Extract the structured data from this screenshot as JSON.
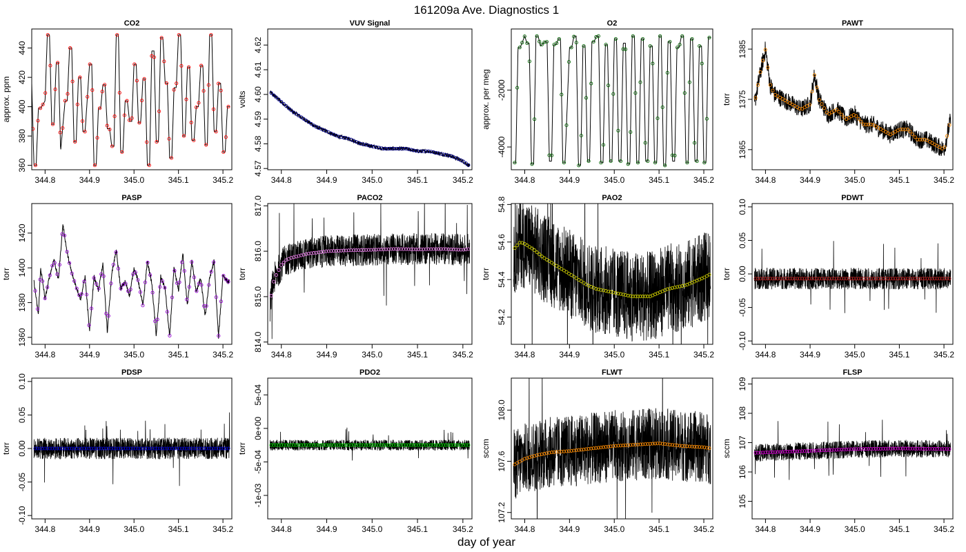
{
  "figure": {
    "title": "161209a   Ave. Diagnostics 1",
    "xlabel": "day of year",
    "x_ticks": [
      "344.8",
      "344.9",
      "345.0",
      "345.1",
      "345.2"
    ]
  },
  "chart_data": [
    {
      "id": "co2",
      "title": "CO2",
      "ylabel": "approx. ppm",
      "type": "line",
      "xlim": [
        344.77,
        345.22
      ],
      "ylim": [
        357,
        453
      ],
      "yticks": [
        360,
        380,
        400,
        420,
        440
      ],
      "ytick_labels": [
        "360",
        "380",
        "400",
        "420",
        "440"
      ],
      "marker_color": "#ff0000",
      "noise": 0,
      "x": [
        344.77,
        344.775,
        344.78,
        344.785,
        344.79,
        344.8,
        344.805,
        344.81,
        344.815,
        344.82,
        344.825,
        344.83,
        344.835,
        344.845,
        344.85,
        344.855,
        344.86,
        344.865,
        344.87,
        344.875,
        344.88,
        344.885,
        344.89,
        344.9,
        344.905,
        344.91,
        344.915,
        344.92,
        344.925,
        344.93,
        344.935,
        344.94,
        344.945,
        344.95,
        344.955,
        344.96,
        344.965,
        344.97,
        344.975,
        344.98,
        344.985,
        344.99,
        344.995,
        345.0,
        345.005,
        345.01,
        345.015,
        345.02,
        345.025,
        345.03,
        345.035,
        345.04,
        345.045,
        345.05,
        345.055,
        345.06,
        345.065,
        345.07,
        345.075,
        345.08,
        345.085,
        345.09,
        345.095,
        345.1,
        345.105,
        345.11,
        345.115,
        345.12,
        345.125,
        345.13,
        345.135,
        345.14,
        345.145,
        345.15,
        345.155,
        345.16,
        345.165,
        345.17,
        345.175,
        345.18,
        345.185,
        345.19,
        345.195,
        345.2,
        345.205,
        345.21,
        345.215
      ],
      "values": [
        416,
        360,
        360,
        399,
        399,
        404,
        449,
        449,
        388,
        388,
        430,
        430,
        370,
        404,
        404,
        440,
        440,
        376,
        376,
        420,
        420,
        383,
        383,
        429,
        429,
        360,
        360,
        399,
        399,
        415,
        415,
        385,
        385,
        373,
        373,
        449,
        449,
        369,
        369,
        404,
        404,
        390,
        390,
        429,
        429,
        389,
        389,
        419,
        419,
        360,
        360,
        438,
        438,
        376,
        376,
        447,
        447,
        416,
        416,
        365,
        365,
        413,
        413,
        449,
        449,
        380,
        380,
        427,
        427,
        377,
        377,
        400,
        400,
        428,
        428,
        374,
        374,
        449,
        449,
        383,
        383,
        416,
        416,
        369,
        369,
        400,
        400
      ]
    },
    {
      "id": "vuv",
      "title": "VUV Signal",
      "ylabel": "volts",
      "type": "line",
      "xlim": [
        344.77,
        345.22
      ],
      "ylim": [
        4.5695,
        4.6265
      ],
      "yticks": [
        4.57,
        4.58,
        4.59,
        4.6,
        4.61,
        4.62
      ],
      "ytick_labels": [
        "4.57",
        "4.58",
        "4.59",
        "4.60",
        "4.61",
        "4.62"
      ],
      "marker_color": "#00008b",
      "noise": 0.0008,
      "x": [
        344.775,
        344.8,
        344.825,
        344.85,
        344.875,
        344.9,
        344.925,
        344.95,
        344.975,
        345.0,
        345.025,
        345.05,
        345.075,
        345.1,
        345.125,
        345.15,
        345.175,
        345.2,
        345.215
      ],
      "values": [
        4.601,
        4.597,
        4.593,
        4.59,
        4.587,
        4.585,
        4.583,
        4.582,
        4.58,
        4.579,
        4.578,
        4.578,
        4.578,
        4.577,
        4.577,
        4.576,
        4.575,
        4.573,
        4.571
      ]
    },
    {
      "id": "o2",
      "title": "O2",
      "ylabel": "approx. per meg",
      "type": "line",
      "xlim": [
        344.77,
        345.22
      ],
      "ylim": [
        -4800,
        150
      ],
      "yticks": [
        -4000,
        -2000
      ],
      "ytick_labels": [
        "-4000",
        "-2000"
      ],
      "marker_color": "#006400",
      "noise": 0,
      "x": [
        344.775,
        344.78,
        344.785,
        344.79,
        344.8,
        344.805,
        344.81,
        344.815,
        344.82,
        344.825,
        344.83,
        344.835,
        344.845,
        344.85,
        344.855,
        344.86,
        344.865,
        344.87,
        344.875,
        344.88,
        344.885,
        344.89,
        344.9,
        344.905,
        344.91,
        344.915,
        344.92,
        344.925,
        344.93,
        344.935,
        344.94,
        344.945,
        344.95,
        344.955,
        344.96,
        344.965,
        344.97,
        344.975,
        344.98,
        344.985,
        344.99,
        344.995,
        345.0,
        345.005,
        345.01,
        345.015,
        345.02,
        345.025,
        345.03,
        345.035,
        345.04,
        345.045,
        345.05,
        345.055,
        345.06,
        345.065,
        345.07,
        345.075,
        345.08,
        345.085,
        345.09,
        345.095,
        345.1,
        345.105,
        345.11,
        345.115,
        345.12,
        345.125,
        345.13,
        345.135,
        345.14,
        345.145,
        345.15,
        345.155,
        345.16,
        345.165,
        345.17,
        345.175,
        345.18,
        345.185,
        345.19,
        345.195,
        345.2,
        345.205,
        345.21,
        345.215
      ],
      "values": [
        -4550,
        -4550,
        -500,
        -500,
        -100,
        -350,
        -350,
        -4600,
        -4600,
        -100,
        -100,
        -450,
        -300,
        -300,
        -4500,
        -4500,
        -400,
        -400,
        -200,
        -200,
        -4550,
        -4550,
        -500,
        -500,
        -100,
        -100,
        -4650,
        -4650,
        -450,
        -450,
        -4500,
        -4500,
        -300,
        -300,
        -100,
        -100,
        -4550,
        -4550,
        -400,
        -400,
        -4500,
        -4500,
        -200,
        -200,
        -4500,
        -4500,
        -350,
        -350,
        -4600,
        -4600,
        -100,
        -100,
        -4550,
        -4550,
        -200,
        -200,
        -4500,
        -4500,
        -450,
        -450,
        -4550,
        -4550,
        -100,
        -100,
        -4650,
        -4650,
        -300,
        -300,
        -4500,
        -4500,
        -500,
        -500,
        -100,
        -100,
        -4550,
        -4550,
        -200,
        -200,
        -4500,
        -4500,
        -450,
        -450,
        -4550,
        -4550,
        -150,
        -150
      ]
    },
    {
      "id": "pawt",
      "title": "PAWT",
      "ylabel": "torr",
      "type": "line",
      "xlim": [
        344.77,
        345.22
      ],
      "ylim": [
        1361,
        1389
      ],
      "yticks": [
        1365,
        1375,
        1385
      ],
      "ytick_labels": [
        "1365",
        "1375",
        "1385"
      ],
      "marker_color": "#ff8c00",
      "noise": 1.8,
      "x": [
        344.775,
        344.79,
        344.8,
        344.81,
        344.82,
        344.84,
        344.86,
        344.88,
        344.9,
        344.91,
        344.92,
        344.94,
        344.96,
        344.98,
        345.0,
        345.02,
        345.04,
        345.06,
        345.08,
        345.1,
        345.12,
        345.14,
        345.16,
        345.18,
        345.2,
        345.215
      ],
      "values": [
        1374,
        1381,
        1385,
        1378,
        1376,
        1375,
        1374,
        1373,
        1374,
        1380,
        1375,
        1372,
        1373,
        1371,
        1372,
        1370,
        1370,
        1369,
        1368,
        1369,
        1369,
        1367,
        1367,
        1366,
        1365,
        1371
      ]
    },
    {
      "id": "pasp",
      "title": "PASP",
      "ylabel": "torr",
      "type": "line",
      "xlim": [
        344.77,
        345.22
      ],
      "ylim": [
        1356,
        1437
      ],
      "yticks": [
        1360,
        1380,
        1400,
        1420
      ],
      "ytick_labels": [
        "1360",
        "1380",
        "1400",
        "1420"
      ],
      "marker_color": "#9400d3",
      "noise": 1.2,
      "x": [
        344.775,
        344.785,
        344.79,
        344.8,
        344.81,
        344.82,
        344.83,
        344.84,
        344.85,
        344.86,
        344.87,
        344.88,
        344.89,
        344.9,
        344.91,
        344.92,
        344.93,
        344.94,
        344.95,
        344.96,
        344.97,
        344.98,
        344.99,
        345.0,
        345.01,
        345.02,
        345.03,
        345.04,
        345.05,
        345.06,
        345.07,
        345.08,
        345.09,
        345.1,
        345.11,
        345.12,
        345.13,
        345.14,
        345.15,
        345.16,
        345.17,
        345.18,
        345.19,
        345.2,
        345.21,
        345.215
      ],
      "values": [
        1392,
        1373,
        1400,
        1382,
        1395,
        1405,
        1393,
        1425,
        1408,
        1397,
        1389,
        1382,
        1395,
        1363,
        1395,
        1387,
        1402,
        1363,
        1397,
        1410,
        1388,
        1392,
        1384,
        1400,
        1392,
        1378,
        1404,
        1391,
        1361,
        1395,
        1388,
        1360,
        1400,
        1387,
        1408,
        1378,
        1404,
        1386,
        1394,
        1372,
        1394,
        1404,
        1360,
        1396,
        1392,
        1392
      ]
    },
    {
      "id": "paco2",
      "title": "PACO2",
      "ylabel": "torr",
      "type": "band",
      "xlim": [
        344.77,
        345.22
      ],
      "ylim": [
        813.95,
        817.05
      ],
      "yticks": [
        814.0,
        815.0,
        816.0,
        817.0
      ],
      "ytick_labels": [
        "814.0",
        "815.0",
        "816.0",
        "817.0"
      ],
      "marker_color": "#ee82ee",
      "noise": 0.35,
      "x": [
        344.775,
        344.78,
        344.785,
        344.79,
        344.8,
        344.81,
        344.82,
        344.84,
        344.86,
        344.88,
        344.9,
        344.95,
        345.0,
        345.05,
        345.1,
        345.15,
        345.2,
        345.215
      ],
      "values": [
        814.8,
        815.2,
        815.4,
        815.5,
        815.7,
        815.8,
        815.85,
        815.9,
        815.95,
        815.97,
        816.0,
        816.02,
        816.03,
        816.05,
        816.04,
        816.05,
        816.03,
        816.05
      ]
    },
    {
      "id": "pao2",
      "title": "PAO2",
      "ylabel": "torr",
      "type": "band",
      "xlim": [
        344.77,
        345.22
      ],
      "ylim": [
        54.055,
        54.805
      ],
      "yticks": [
        54.2,
        54.4,
        54.6,
        54.8
      ],
      "ytick_labels": [
        "54.2",
        "54.4",
        "54.6",
        "54.8"
      ],
      "marker_color": "#cccc00",
      "noise": 0.24,
      "x": [
        344.775,
        344.79,
        344.8,
        344.82,
        344.84,
        344.86,
        344.88,
        344.9,
        344.92,
        344.94,
        344.96,
        344.98,
        345.0,
        345.02,
        345.04,
        345.06,
        345.08,
        345.1,
        345.12,
        345.14,
        345.16,
        345.18,
        345.2,
        345.215
      ],
      "values": [
        54.56,
        54.6,
        54.59,
        54.56,
        54.52,
        54.49,
        54.46,
        54.43,
        54.4,
        54.37,
        54.35,
        54.34,
        54.33,
        54.32,
        54.31,
        54.31,
        54.31,
        54.33,
        54.35,
        54.36,
        54.37,
        54.39,
        54.41,
        54.43
      ]
    },
    {
      "id": "pdwt",
      "title": "PDWT",
      "ylabel": "torr",
      "type": "band",
      "xlim": [
        344.77,
        345.22
      ],
      "ylim": [
        -0.105,
        0.105
      ],
      "yticks": [
        -0.1,
        -0.05,
        0.0,
        0.05,
        0.1
      ],
      "ytick_labels": [
        "-0.10",
        "-0.05",
        "0.00",
        "0.05",
        "0.10"
      ],
      "marker_color": "#b22222",
      "noise": 0.016,
      "x": [
        344.775,
        345.215
      ],
      "values": [
        -0.007,
        -0.007
      ]
    },
    {
      "id": "pdsp",
      "title": "PDSP",
      "ylabel": "torr",
      "type": "band",
      "xlim": [
        344.77,
        345.22
      ],
      "ylim": [
        -0.105,
        0.105
      ],
      "yticks": [
        -0.1,
        -0.05,
        0.0,
        0.05,
        0.1
      ],
      "ytick_labels": [
        "-0.10",
        "-0.05",
        "0.00",
        "0.05",
        "0.10"
      ],
      "marker_color": "#0000cd",
      "noise": 0.016,
      "x": [
        344.775,
        345.215
      ],
      "values": [
        0.0,
        0.0
      ]
    },
    {
      "id": "pdo2",
      "title": "PDO2",
      "ylabel": "torr",
      "type": "band",
      "xlim": [
        344.77,
        345.22
      ],
      "ylim": [
        -0.00135,
        0.00075
      ],
      "yticks": [
        -0.001,
        -0.0005,
        0.0,
        0.0005
      ],
      "ytick_labels": [
        "-1e-03",
        "-5e-04",
        "0e+00",
        "5e-04"
      ],
      "marker_color": "#00cc00",
      "noise": 8e-05,
      "x": [
        344.775,
        345.215
      ],
      "values": [
        -0.00025,
        -0.00025
      ]
    },
    {
      "id": "flwt",
      "title": "FLWT",
      "ylabel": "sccm",
      "type": "band",
      "xlim": [
        344.77,
        345.22
      ],
      "ylim": [
        107.15,
        108.25
      ],
      "yticks": [
        107.2,
        107.6,
        108.0
      ],
      "ytick_labels": [
        "107.2",
        "107.6",
        "108.0"
      ],
      "marker_color": "#ff8c00",
      "noise": 0.28,
      "x": [
        344.775,
        344.8,
        344.83,
        344.86,
        344.9,
        344.95,
        345.0,
        345.05,
        345.1,
        345.15,
        345.2,
        345.215
      ],
      "values": [
        107.57,
        107.62,
        107.65,
        107.67,
        107.68,
        107.7,
        107.72,
        107.73,
        107.74,
        107.72,
        107.71,
        107.7
      ]
    },
    {
      "id": "flsp",
      "title": "FLSP",
      "ylabel": "sccm",
      "type": "band",
      "xlim": [
        344.77,
        345.22
      ],
      "ylim": [
        104.4,
        109.2
      ],
      "yticks": [
        105,
        106,
        107,
        108,
        109
      ],
      "ytick_labels": [
        "105",
        "106",
        "107",
        "108",
        "109"
      ],
      "marker_color": "#cc00cc",
      "noise": 0.3,
      "x": [
        344.775,
        344.9,
        345.0,
        345.1,
        345.215
      ],
      "values": [
        106.65,
        106.72,
        106.78,
        106.8,
        106.78
      ]
    }
  ]
}
